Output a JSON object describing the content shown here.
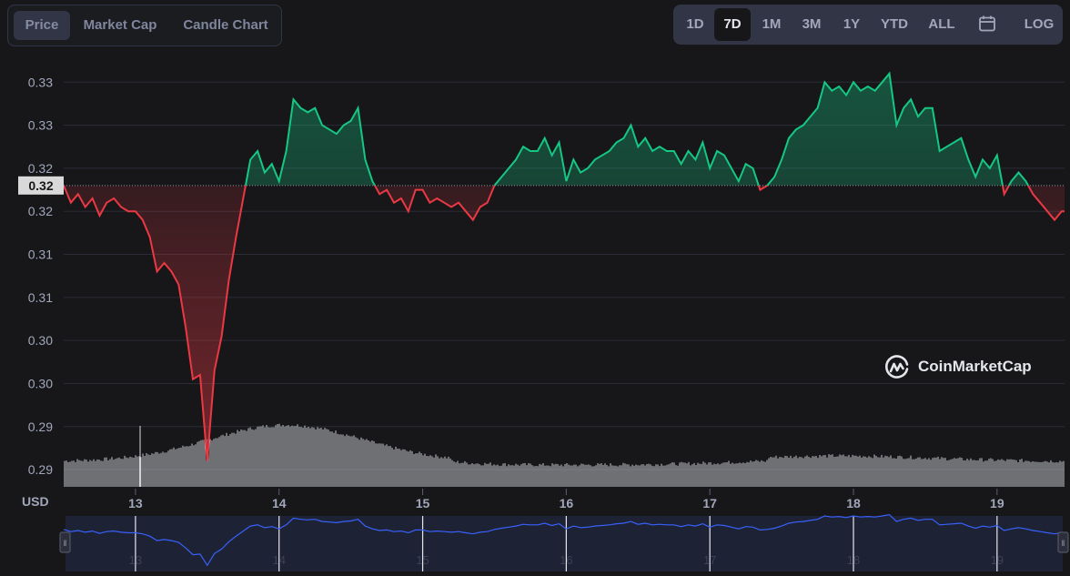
{
  "tabs_left": [
    {
      "label": "Price",
      "active": true
    },
    {
      "label": "Market Cap",
      "active": false
    },
    {
      "label": "Candle Chart",
      "active": false
    }
  ],
  "tabs_right": [
    {
      "label": "1D",
      "active": false
    },
    {
      "label": "7D",
      "active": true
    },
    {
      "label": "1M",
      "active": false
    },
    {
      "label": "3M",
      "active": false
    },
    {
      "label": "1Y",
      "active": false
    },
    {
      "label": "YTD",
      "active": false
    },
    {
      "label": "ALL",
      "active": false
    }
  ],
  "log_label": "LOG",
  "calendar_icon": "calendar-icon",
  "watermark": "CoinMarketCap",
  "colors": {
    "up": "#16c784",
    "down": "#ea3943",
    "navigator": "#3861fb",
    "volume": "#d9dbe1",
    "grid": "#2a2d36",
    "text": "#a1a7bb"
  },
  "chart_data": {
    "type": "line",
    "currency_label": "USD",
    "current_price_label": "0.32",
    "baseline": 0.3205,
    "y_ticks": [
      {
        "label": "0.33",
        "value": 0.3325
      },
      {
        "label": "0.33",
        "value": 0.3275
      },
      {
        "label": "0.32",
        "value": 0.3225
      },
      {
        "label": "0.32",
        "value": 0.3175
      },
      {
        "label": "0.31",
        "value": 0.3125
      },
      {
        "label": "0.31",
        "value": 0.3075
      },
      {
        "label": "0.30",
        "value": 0.3025
      },
      {
        "label": "0.30",
        "value": 0.2975
      },
      {
        "label": "0.29",
        "value": 0.2925
      },
      {
        "label": "0.29",
        "value": 0.2875
      }
    ],
    "x_ticks": [
      13,
      14,
      15,
      16,
      17,
      18,
      19
    ],
    "xlim": [
      12.5,
      19.47
    ],
    "ylim": [
      0.2855,
      0.3357
    ],
    "series": [
      {
        "x": [
          12.5,
          12.55,
          12.6,
          12.65,
          12.7,
          12.75,
          12.8,
          12.85,
          12.9,
          12.95,
          13.0,
          13.05,
          13.1,
          13.15,
          13.2,
          13.25,
          13.3,
          13.35,
          13.4,
          13.45,
          13.5,
          13.55,
          13.6,
          13.65,
          13.7,
          13.75,
          13.8,
          13.85,
          13.9,
          13.95,
          14.0,
          14.05,
          14.1,
          14.15,
          14.2,
          14.25,
          14.3,
          14.35,
          14.4,
          14.45,
          14.5,
          14.55,
          14.6,
          14.65,
          14.7,
          14.75,
          14.8,
          14.85,
          14.9,
          14.95,
          15.0,
          15.05,
          15.1,
          15.15,
          15.2,
          15.25,
          15.3,
          15.35,
          15.4,
          15.45,
          15.5,
          15.55,
          15.6,
          15.65,
          15.7,
          15.75,
          15.8,
          15.85,
          15.9,
          15.95,
          16.0,
          16.05,
          16.1,
          16.15,
          16.2,
          16.25,
          16.3,
          16.35,
          16.4,
          16.45,
          16.5,
          16.55,
          16.6,
          16.65,
          16.7,
          16.75,
          16.8,
          16.85,
          16.9,
          16.95,
          17.0,
          17.05,
          17.1,
          17.15,
          17.2,
          17.25,
          17.3,
          17.35,
          17.4,
          17.45,
          17.5,
          17.55,
          17.6,
          17.65,
          17.7,
          17.75,
          17.8,
          17.85,
          17.9,
          17.95,
          18.0,
          18.05,
          18.1,
          18.15,
          18.2,
          18.25,
          18.3,
          18.35,
          18.4,
          18.45,
          18.5,
          18.55,
          18.6,
          18.65,
          18.7,
          18.75,
          18.8,
          18.85,
          18.9,
          18.95,
          19.0,
          19.05,
          19.1,
          19.15,
          19.2,
          19.25,
          19.3,
          19.35,
          19.4,
          19.45,
          19.47
        ],
        "values": [
          0.3205,
          0.3185,
          0.3195,
          0.318,
          0.319,
          0.317,
          0.3185,
          0.319,
          0.318,
          0.3175,
          0.3175,
          0.3165,
          0.3145,
          0.3105,
          0.3115,
          0.3105,
          0.309,
          0.304,
          0.298,
          0.2985,
          0.2885,
          0.299,
          0.303,
          0.3095,
          0.3145,
          0.319,
          0.3235,
          0.3245,
          0.322,
          0.323,
          0.321,
          0.3245,
          0.3305,
          0.3295,
          0.329,
          0.3295,
          0.3275,
          0.327,
          0.3265,
          0.3275,
          0.328,
          0.3295,
          0.3235,
          0.321,
          0.3195,
          0.32,
          0.3185,
          0.319,
          0.3175,
          0.32,
          0.32,
          0.3185,
          0.319,
          0.3185,
          0.318,
          0.3185,
          0.3175,
          0.3165,
          0.318,
          0.3185,
          0.3205,
          0.3215,
          0.3225,
          0.3235,
          0.325,
          0.3245,
          0.3245,
          0.326,
          0.324,
          0.3255,
          0.321,
          0.3235,
          0.322,
          0.3225,
          0.3235,
          0.324,
          0.3245,
          0.3255,
          0.326,
          0.3275,
          0.325,
          0.326,
          0.3245,
          0.325,
          0.3245,
          0.3245,
          0.323,
          0.3245,
          0.3235,
          0.3255,
          0.3225,
          0.3245,
          0.324,
          0.3225,
          0.321,
          0.323,
          0.3225,
          0.32,
          0.3205,
          0.3215,
          0.3235,
          0.326,
          0.327,
          0.3275,
          0.3285,
          0.3295,
          0.3325,
          0.3315,
          0.332,
          0.331,
          0.3325,
          0.3315,
          0.332,
          0.3315,
          0.3325,
          0.3335,
          0.3275,
          0.3295,
          0.3305,
          0.3285,
          0.3295,
          0.3295,
          0.3245,
          0.325,
          0.3255,
          0.326,
          0.3235,
          0.3215,
          0.3235,
          0.3225,
          0.324,
          0.3195,
          0.321,
          0.322,
          0.321,
          0.3195,
          0.3185,
          0.3175,
          0.3165,
          0.3175,
          0.3175
        ]
      }
    ]
  }
}
